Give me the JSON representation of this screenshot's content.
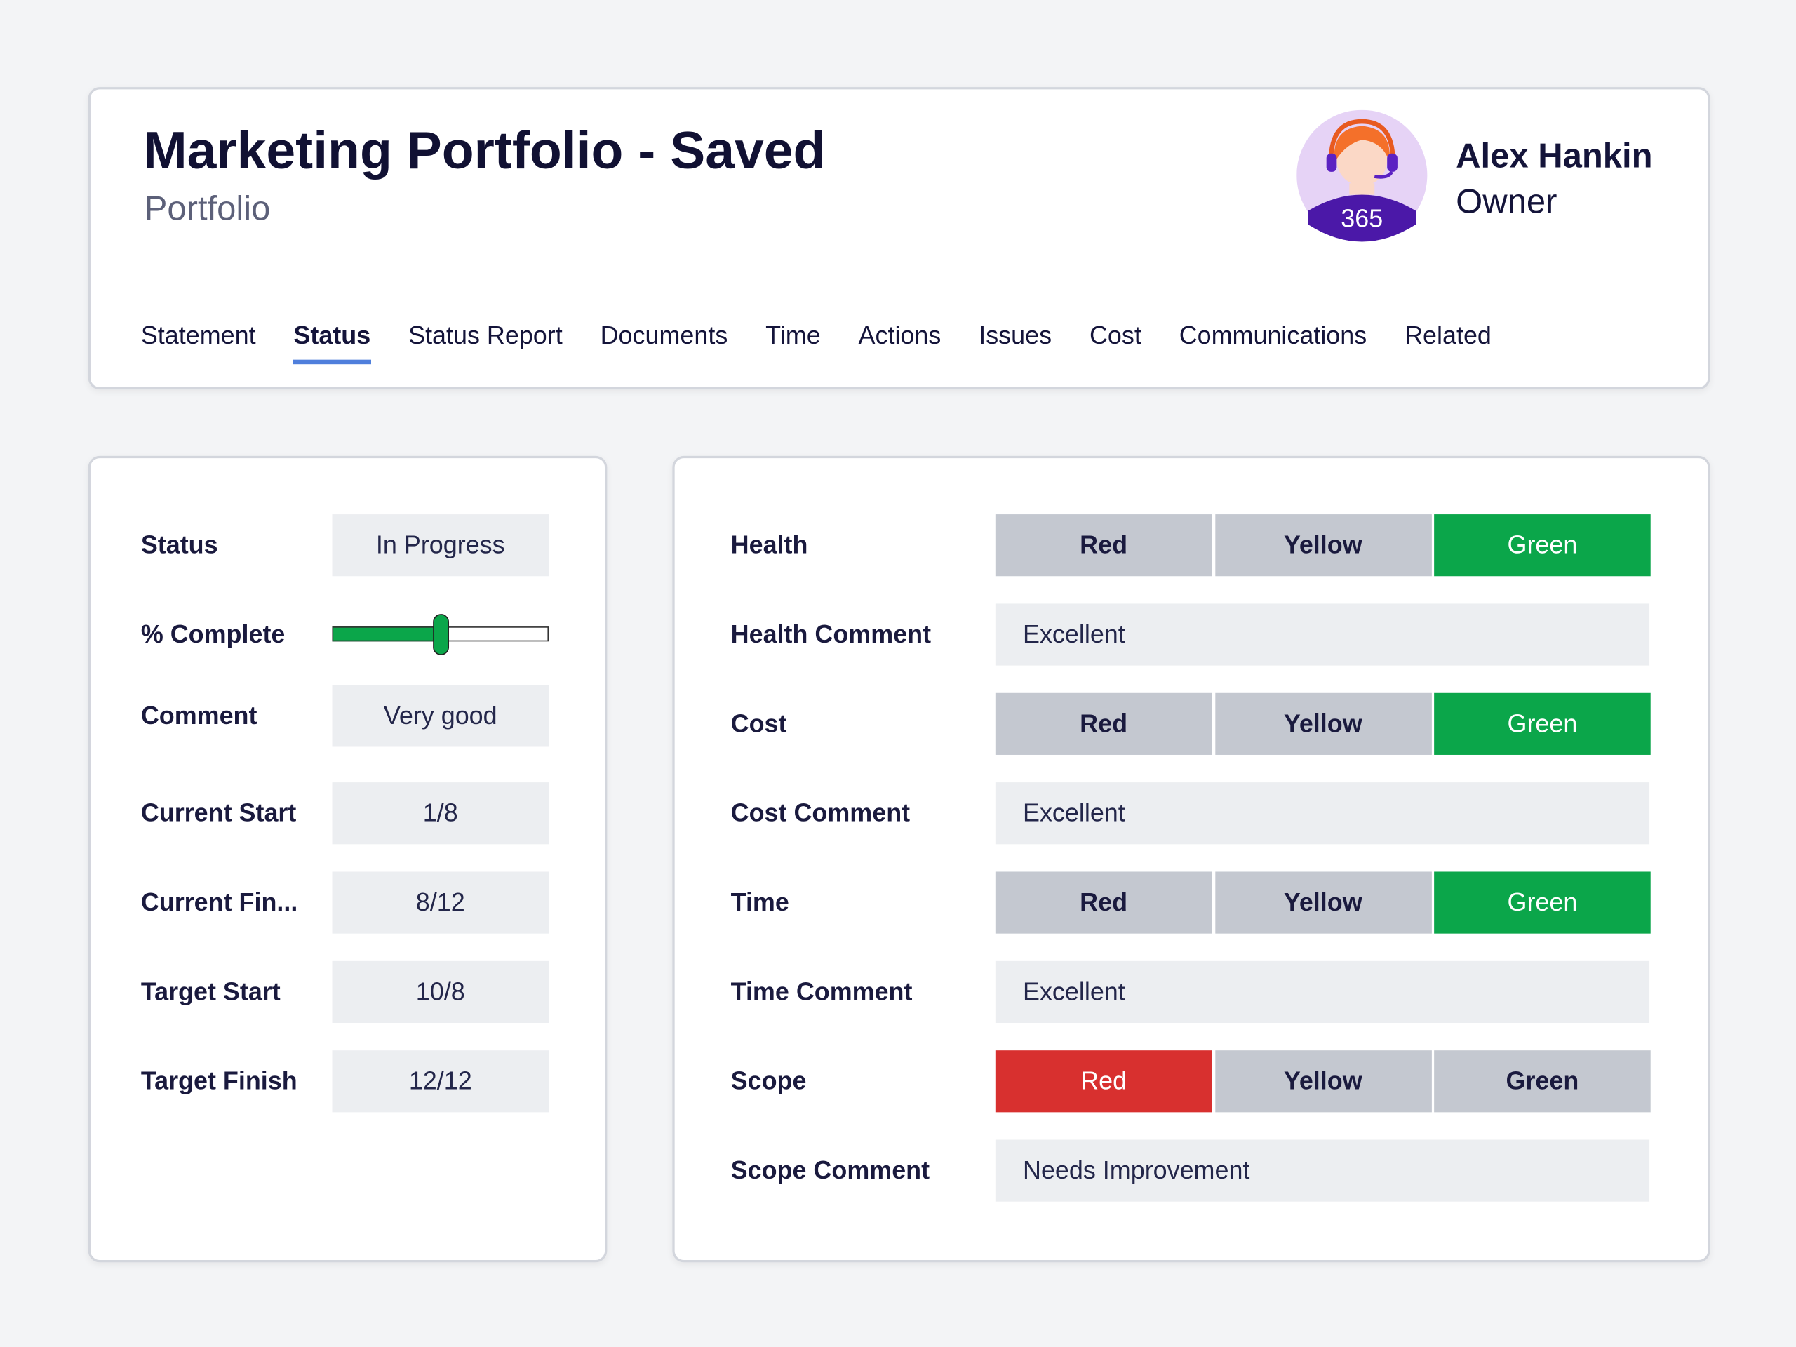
{
  "header": {
    "title": "Marketing Portfolio - Saved",
    "subtitle": "Portfolio",
    "owner": {
      "name": "Alex Hankin",
      "role": "Owner",
      "badge": "365"
    }
  },
  "tabs": {
    "items": [
      "Statement",
      "Status",
      "Status Report",
      "Documents",
      "Time",
      "Actions",
      "Issues",
      "Cost",
      "Communications",
      "Related"
    ],
    "active": 1
  },
  "details": {
    "rows": [
      {
        "label": "Status",
        "value": "In Progress"
      },
      {
        "label": "% Complete",
        "percent": 50
      },
      {
        "label": "Comment",
        "value": "Very good"
      },
      {
        "label": "Current Start",
        "value": "1/8"
      },
      {
        "label": "Current Fin...",
        "value": "8/12"
      },
      {
        "label": "Target Start",
        "value": "10/8"
      },
      {
        "label": "Target Finish",
        "value": "12/12"
      }
    ]
  },
  "assessment": {
    "options": [
      "Red",
      "Yellow",
      "Green"
    ],
    "selected_colors": [
      "#d8302f",
      "#c4c8d0",
      "#0ba64a"
    ],
    "unselected_color": "#c4c8d0",
    "rows": [
      {
        "label": "Health",
        "selected": 2
      },
      {
        "label": "Health Comment",
        "comment": "Excellent"
      },
      {
        "label": "Cost",
        "selected": 2
      },
      {
        "label": "Cost Comment",
        "comment": "Excellent"
      },
      {
        "label": "Time",
        "selected": 2
      },
      {
        "label": "Time Comment",
        "comment": "Excellent"
      },
      {
        "label": "Scope",
        "selected": 0
      },
      {
        "label": "Scope Comment",
        "comment": "Needs Improvement"
      }
    ]
  }
}
